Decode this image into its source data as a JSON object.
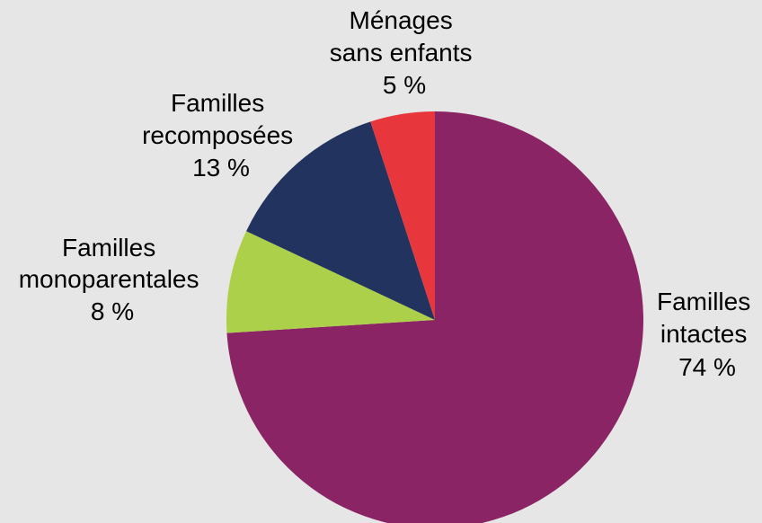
{
  "chart_data": {
    "type": "pie",
    "start_angle_deg": 0,
    "direction": "clockwise",
    "slices": [
      {
        "label_lines": [
          "Familles",
          "intactes"
        ],
        "value": 74,
        "value_label": "74 %",
        "color": "#8b2465"
      },
      {
        "label_lines": [
          "Familles",
          "monoparentales"
        ],
        "value": 8,
        "value_label": "8 %",
        "color": "#add04a"
      },
      {
        "label_lines": [
          "Familles",
          "recomposées"
        ],
        "value": 13,
        "value_label": "13 %",
        "color": "#22335f"
      },
      {
        "label_lines": [
          "Ménages",
          "sans enfants"
        ],
        "value": 5,
        "value_label": "5 %",
        "color": "#e8373c"
      }
    ]
  }
}
